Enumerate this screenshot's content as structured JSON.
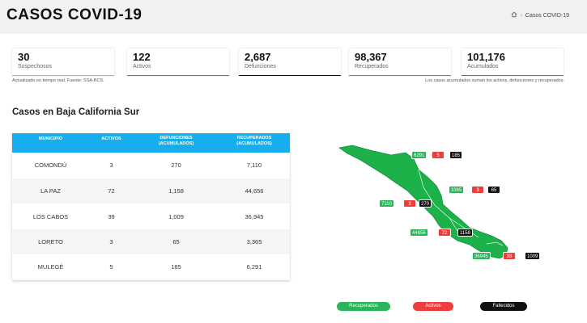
{
  "header": {
    "title": "CASOS COVID-19",
    "breadcrumb_sep": "›",
    "breadcrumb_current": "Casos COVID-19"
  },
  "stats": [
    {
      "value": "30",
      "label": "Sospechosos",
      "accent": "#f5b800"
    },
    {
      "value": "122",
      "label": "Activos",
      "accent": "#ef3d3d"
    },
    {
      "value": "2,687",
      "label": "Defunciones",
      "accent": "#111111"
    },
    {
      "value": "98,367",
      "label": "Recuperados",
      "accent": "#2bb55a"
    },
    {
      "value": "101,176",
      "label": "Acumulados",
      "accent": "#ef3d3d"
    }
  ],
  "notes": {
    "left": "Actualizado en tiempo real. Fuente: SSA-BCS.",
    "right": "Los casos acumulados suman los activos, defunciones y recuperados."
  },
  "section_title": "Casos en Baja California Sur",
  "table": {
    "headers": [
      "MUNICIPIO",
      "ACTIVOS",
      "DEFUNCIONES",
      "(ACUMULADOS)",
      "RECUPERADOS",
      "(ACUMULADOS)"
    ],
    "rows": [
      {
        "municipio": "COMONDÚ",
        "activos": "3",
        "defunciones": "270",
        "recuperados": "7,110"
      },
      {
        "municipio": "LA PAZ",
        "activos": "72",
        "defunciones": "1,158",
        "recuperados": "44,656"
      },
      {
        "municipio": "LOS CABOS",
        "activos": "39",
        "defunciones": "1,009",
        "recuperados": "36,945"
      },
      {
        "municipio": "LORETO",
        "activos": "3",
        "defunciones": "65",
        "recuperados": "3,365"
      },
      {
        "municipio": "MULEGÉ",
        "activos": "5",
        "defunciones": "185",
        "recuperados": "6,291"
      }
    ]
  },
  "map": {
    "mulege": {
      "recuperados": "6291",
      "activos": "5",
      "fallecidos": "185"
    },
    "loreto": {
      "recuperados": "3365",
      "activos": "3",
      "fallecidos": "65"
    },
    "comondu": {
      "recuperados": "7110",
      "activos": "3",
      "fallecidos": "270"
    },
    "lapaz": {
      "recuperados": "44656",
      "activos": "72",
      "fallecidos": "1158"
    },
    "loscabos": {
      "recuperados": "36945",
      "activos": "39",
      "fallecidos": "1009"
    }
  },
  "legend": {
    "recuperados": "Recuperados",
    "activos": "Activos",
    "fallecidos": "Fallecidos"
  },
  "colors": {
    "header_bg": "#f1f1f1",
    "table_header": "#17aef0",
    "map_fill": "#1db14a",
    "recuperados": "#2bb55a",
    "activos": "#ef3d3d",
    "fallecidos": "#111111"
  }
}
